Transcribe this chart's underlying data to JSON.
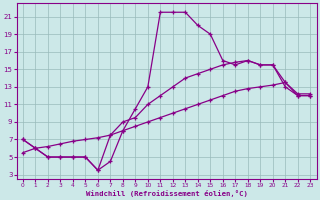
{
  "xlabel": "Windchill (Refroidissement éolien,°C)",
  "xlim": [
    -0.5,
    23.5
  ],
  "ylim": [
    2.5,
    22.5
  ],
  "xticks": [
    0,
    1,
    2,
    3,
    4,
    5,
    6,
    7,
    8,
    9,
    10,
    11,
    12,
    13,
    14,
    15,
    16,
    17,
    18,
    19,
    20,
    21,
    22,
    23
  ],
  "yticks": [
    3,
    5,
    7,
    9,
    11,
    13,
    15,
    17,
    19,
    21
  ],
  "background_color": "#cce8e8",
  "line_color": "#880088",
  "grid_color": "#99bbbb",
  "line1_x": [
    0,
    1,
    2,
    3,
    4,
    5,
    6,
    7,
    8,
    9,
    10,
    11,
    12,
    13,
    14,
    15,
    16,
    17,
    18,
    19,
    20,
    21,
    22,
    23
  ],
  "line1_y": [
    7,
    6,
    5,
    5,
    5,
    5,
    3.5,
    4.5,
    8,
    10.5,
    13,
    21.5,
    21.5,
    21.5,
    20,
    19,
    16,
    15.5,
    16,
    15.5,
    15.5,
    13.5,
    12,
    12
  ],
  "line2_x": [
    0,
    1,
    2,
    3,
    4,
    5,
    6,
    7,
    8,
    9,
    10,
    11,
    12,
    13,
    14,
    15,
    16,
    17,
    18,
    19,
    20,
    21,
    22,
    23
  ],
  "line2_y": [
    7,
    6,
    5,
    5,
    5,
    5,
    3.5,
    7.5,
    9,
    9.5,
    11,
    12,
    13,
    14,
    14.5,
    15,
    15.5,
    15.8,
    16,
    15.5,
    15.5,
    13,
    12,
    12
  ],
  "line3_x": [
    0,
    1,
    2,
    3,
    4,
    5,
    6,
    7,
    8,
    9,
    10,
    11,
    12,
    13,
    14,
    15,
    16,
    17,
    18,
    19,
    20,
    21,
    22,
    23
  ],
  "line3_y": [
    5.5,
    6,
    6.2,
    6.5,
    6.8,
    7.0,
    7.2,
    7.5,
    8.0,
    8.5,
    9.0,
    9.5,
    10.0,
    10.5,
    11.0,
    11.5,
    12.0,
    12.5,
    12.8,
    13.0,
    13.2,
    13.5,
    12.2,
    12.2
  ]
}
